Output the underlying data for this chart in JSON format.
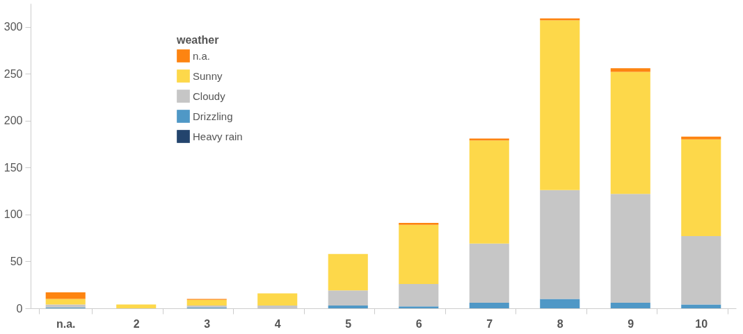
{
  "chart_data": {
    "type": "bar",
    "stacked": true,
    "legend_title": "weather",
    "legend": "top left",
    "grid": false,
    "categories": [
      "n.a.",
      "2",
      "3",
      "4",
      "5",
      "6",
      "7",
      "8",
      "9",
      "10"
    ],
    "ylim": [
      0,
      325
    ],
    "yticks": [
      0,
      50,
      100,
      150,
      200,
      250,
      300
    ],
    "series": [
      {
        "name": "Heavy rain",
        "color": "#23446d",
        "values": [
          0,
          0,
          0,
          0,
          0,
          0,
          0,
          0,
          0,
          0
        ]
      },
      {
        "name": "Drizzling",
        "color": "#4f98c6",
        "values": [
          1,
          0,
          1,
          0,
          3,
          2,
          6,
          10,
          6,
          4
        ]
      },
      {
        "name": "Cloudy",
        "color": "#c6c6c6",
        "values": [
          3,
          0,
          2,
          3,
          16,
          24,
          63,
          116,
          116,
          73
        ]
      },
      {
        "name": "Sunny",
        "color": "#fdd84a",
        "values": [
          6,
          4,
          6,
          13,
          39,
          63,
          110,
          181,
          130,
          103
        ]
      },
      {
        "name": "n.a.",
        "color": "#fd8411",
        "values": [
          7,
          0,
          1,
          0,
          0,
          2,
          2,
          2,
          4,
          3
        ]
      }
    ]
  }
}
